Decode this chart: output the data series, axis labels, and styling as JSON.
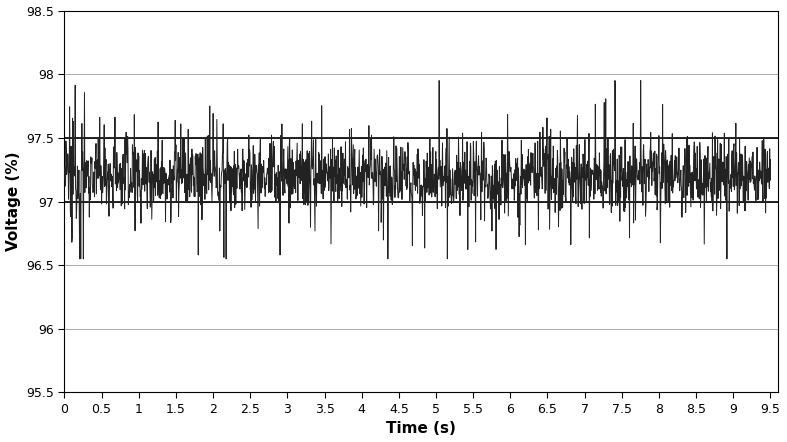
{
  "title": "",
  "xlabel": "Time (s)",
  "ylabel": "Voltage (%)",
  "xlim": [
    0,
    9.6
  ],
  "ylim": [
    95.5,
    98.5
  ],
  "yticks": [
    95.5,
    96.0,
    96.5,
    97.0,
    97.5,
    98.0,
    98.5
  ],
  "xticks": [
    0,
    0.5,
    1.0,
    1.5,
    2.0,
    2.5,
    3.0,
    3.5,
    4.0,
    4.5,
    5.0,
    5.5,
    6.0,
    6.5,
    7.0,
    7.5,
    8.0,
    8.5,
    9.0,
    9.5
  ],
  "hlines": [
    97.0,
    97.5
  ],
  "hline_color": "#000000",
  "line_color": "#222222",
  "line_width": 0.7,
  "background_color": "#ffffff",
  "grid_color": "#888888",
  "mean_voltage": 97.2,
  "noise_std": 0.14,
  "n_points": 1900,
  "duration": 9.5,
  "xlabel_fontsize": 11,
  "ylabel_fontsize": 11,
  "tick_fontsize": 9
}
